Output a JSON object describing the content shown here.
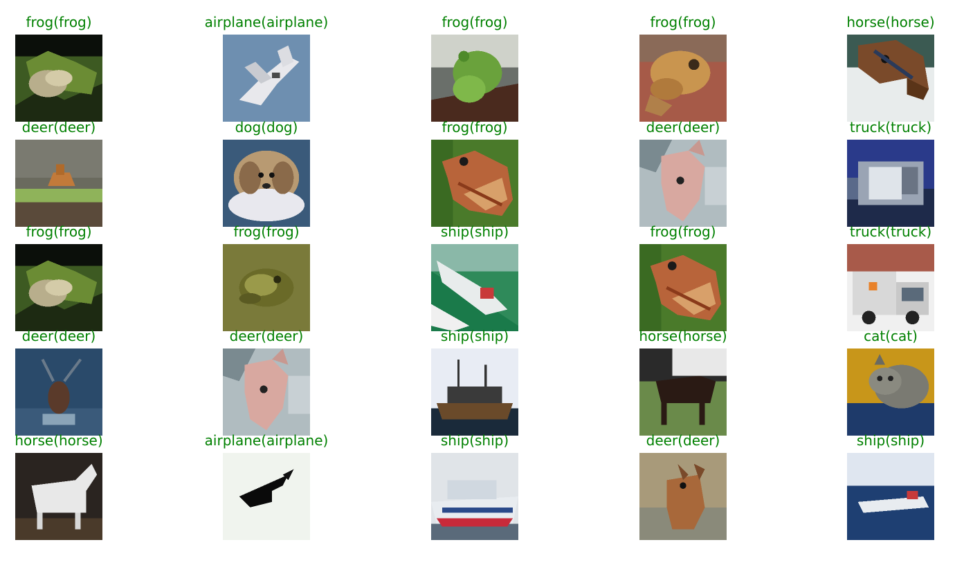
{
  "figure": {
    "caption_color": "#008000",
    "rows": [
      [
        {
          "label": "frog(frog)",
          "scene": "frog-dark"
        },
        {
          "label": "airplane(airplane)",
          "scene": "airplane-sky"
        },
        {
          "label": "frog(frog)",
          "scene": "frog-green"
        },
        {
          "label": "frog(frog)",
          "scene": "frog-brown"
        },
        {
          "label": "horse(horse)",
          "scene": "horse-head"
        }
      ],
      [
        {
          "label": "deer(deer)",
          "scene": "deer-field"
        },
        {
          "label": "dog(dog)",
          "scene": "dog-fluffy"
        },
        {
          "label": "frog(frog)",
          "scene": "frog-orange"
        },
        {
          "label": "deer(deer)",
          "scene": "deer-pale"
        },
        {
          "label": "truck(truck)",
          "scene": "truck-blue"
        }
      ],
      [
        {
          "label": "frog(frog)",
          "scene": "frog-dark"
        },
        {
          "label": "frog(frog)",
          "scene": "frog-olive"
        },
        {
          "label": "ship(ship)",
          "scene": "ship-green"
        },
        {
          "label": "frog(frog)",
          "scene": "frog-orange"
        },
        {
          "label": "truck(truck)",
          "scene": "truck-white"
        }
      ],
      [
        {
          "label": "deer(deer)",
          "scene": "deer-blue"
        },
        {
          "label": "deer(deer)",
          "scene": "deer-pale"
        },
        {
          "label": "ship(ship)",
          "scene": "ship-harbor"
        },
        {
          "label": "horse(horse)",
          "scene": "horse-dark"
        },
        {
          "label": "cat(cat)",
          "scene": "cat-tabby"
        }
      ],
      [
        {
          "label": "horse(horse)",
          "scene": "horse-white"
        },
        {
          "label": "airplane(airplane)",
          "scene": "airplane-black"
        },
        {
          "label": "ship(ship)",
          "scene": "ship-ferry"
        },
        {
          "label": "deer(deer)",
          "scene": "deer-brown"
        },
        {
          "label": "ship(ship)",
          "scene": "ship-sea"
        }
      ]
    ]
  }
}
